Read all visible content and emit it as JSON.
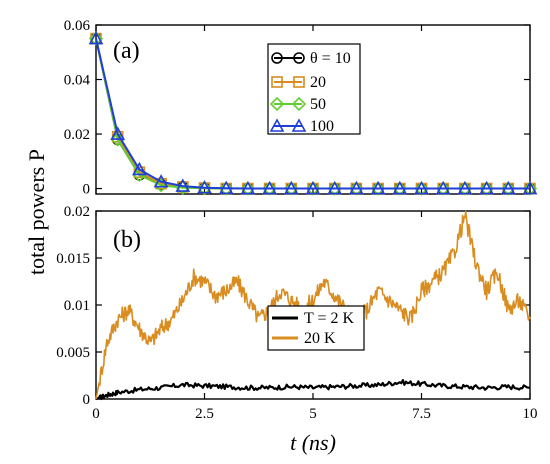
{
  "chart_data": [
    {
      "type": "line",
      "panel_label": "(a)",
      "ylabel": "total powers P",
      "xlabel": "t (ns)",
      "xlim": [
        0,
        10
      ],
      "ylim": [
        -0.002,
        0.06
      ],
      "xticks": [
        "0",
        "2.5",
        "5",
        "7.5",
        "10"
      ],
      "yticks": [
        "0",
        "0.02",
        "0.04",
        "0.06"
      ],
      "yticks_values": [
        0,
        0.02,
        0.04,
        0.06
      ],
      "grid": false,
      "legend_position": "top-right",
      "legend_title": "θ = 10",
      "series": [
        {
          "name": "θ = 10",
          "color": "#000000",
          "marker": "circle",
          "x": [
            0,
            0.5,
            1,
            1.5,
            2,
            2.5,
            3,
            3.5,
            4,
            4.5,
            5,
            5.5,
            6,
            6.5,
            7,
            7.5,
            8,
            8.5,
            9,
            9.5,
            10
          ],
          "y": [
            0.055,
            0.018,
            0.005,
            0.0015,
            0.0005,
            0.0002,
            0,
            0,
            0,
            0,
            0,
            0,
            0,
            0,
            0,
            0,
            0,
            0,
            0,
            0,
            0
          ]
        },
        {
          "name": "20",
          "color": "#d98c1f",
          "marker": "square",
          "x": [
            0,
            0.5,
            1,
            1.5,
            2,
            2.5,
            3,
            3.5,
            4,
            4.5,
            5,
            5.5,
            6,
            6.5,
            7,
            7.5,
            8,
            8.5,
            9,
            9.5,
            10
          ],
          "y": [
            0.055,
            0.019,
            0.006,
            0.0018,
            0.0006,
            0.0002,
            0,
            0,
            0,
            0,
            0,
            0,
            0,
            0,
            0,
            0,
            0,
            0,
            0,
            0,
            0
          ]
        },
        {
          "name": "50",
          "color": "#66cc33",
          "marker": "diamond",
          "x": [
            0,
            0.5,
            1,
            1.5,
            2,
            2.5,
            3,
            3.5,
            4,
            4.5,
            5,
            5.5,
            6,
            6.5,
            7,
            7.5,
            8,
            8.5,
            9,
            9.5,
            10
          ],
          "y": [
            0.055,
            0.018,
            0.005,
            0.0012,
            0.0003,
            0.0001,
            0,
            0,
            0,
            0,
            0,
            0,
            0,
            0,
            0,
            0,
            0,
            0,
            0,
            0,
            0
          ]
        },
        {
          "name": "100",
          "color": "#1f3fd9",
          "marker": "triangle",
          "x": [
            0,
            0.5,
            1,
            1.5,
            2,
            2.5,
            3,
            3.5,
            4,
            4.5,
            5,
            5.5,
            6,
            6.5,
            7,
            7.5,
            8,
            8.5,
            9,
            9.5,
            10
          ],
          "y": [
            0.055,
            0.02,
            0.007,
            0.0025,
            0.0009,
            0.0003,
            0.0001,
            0,
            0,
            0,
            0,
            0,
            0,
            0,
            0,
            0,
            0,
            0,
            0,
            0,
            0
          ]
        }
      ]
    },
    {
      "type": "line",
      "panel_label": "(b)",
      "xlabel": "t (ns)",
      "xlim": [
        0,
        10
      ],
      "ylim": [
        0,
        0.02
      ],
      "xticks": [
        "0",
        "2.5",
        "5",
        "7.5",
        "10"
      ],
      "xticks_values": [
        0,
        2.5,
        5,
        7.5,
        10
      ],
      "yticks": [
        "0",
        "0.005",
        "0.01",
        "0.015",
        "0.02"
      ],
      "yticks_values": [
        0,
        0.005,
        0.01,
        0.015,
        0.02
      ],
      "grid": false,
      "legend_position": "center-right",
      "series": [
        {
          "name": "T = 2 K",
          "color": "#000000",
          "x": [
            0,
            0.25,
            0.5,
            1,
            1.5,
            2,
            2.5,
            3,
            3.5,
            4,
            4.5,
            5,
            5.5,
            6,
            6.5,
            7,
            7.5,
            8,
            8.5,
            9,
            9.5,
            10
          ],
          "y": [
            0,
            0.0004,
            0.0007,
            0.001,
            0.0012,
            0.0015,
            0.0014,
            0.0013,
            0.0012,
            0.0012,
            0.0013,
            0.0012,
            0.0013,
            0.0014,
            0.0015,
            0.0018,
            0.0016,
            0.0014,
            0.0013,
            0.0012,
            0.0013,
            0.0012
          ]
        },
        {
          "name": "20 K",
          "color": "#d98c1f",
          "x": [
            0,
            0.25,
            0.5,
            0.75,
            1,
            1.25,
            1.5,
            1.75,
            2,
            2.25,
            2.5,
            2.75,
            3,
            3.25,
            3.5,
            3.75,
            4,
            4.25,
            4.5,
            4.75,
            5,
            5.25,
            5.5,
            5.75,
            6,
            6.25,
            6.5,
            6.75,
            7,
            7.25,
            7.5,
            7.75,
            8,
            8.25,
            8.5,
            8.75,
            9,
            9.25,
            9.5,
            9.75,
            10
          ],
          "y": [
            0,
            0.006,
            0.0085,
            0.0095,
            0.0075,
            0.006,
            0.0075,
            0.0085,
            0.0105,
            0.013,
            0.0125,
            0.011,
            0.0115,
            0.0125,
            0.0105,
            0.0085,
            0.0095,
            0.0115,
            0.0105,
            0.0095,
            0.0105,
            0.0125,
            0.011,
            0.0095,
            0.0085,
            0.0095,
            0.0115,
            0.0105,
            0.0095,
            0.0085,
            0.0115,
            0.0125,
            0.0135,
            0.0155,
            0.0195,
            0.0145,
            0.0115,
            0.0135,
            0.0095,
            0.0105,
            0.0085
          ]
        }
      ]
    }
  ]
}
